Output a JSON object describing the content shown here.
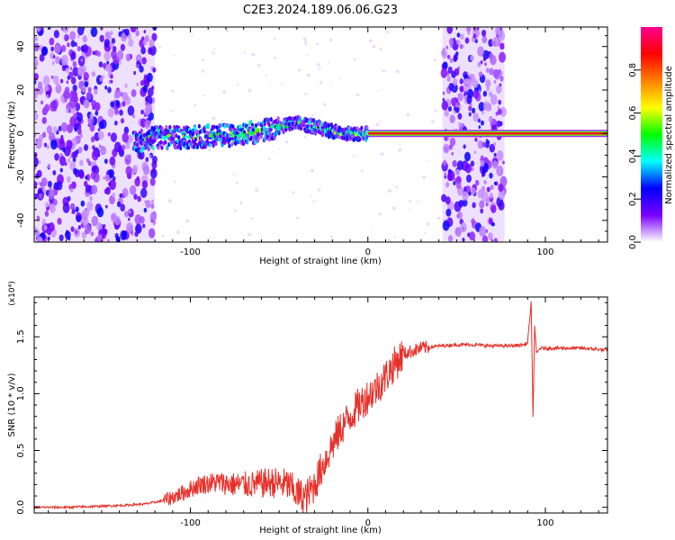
{
  "figure": {
    "title": "C2E3.2024.189.06.06.G23"
  },
  "chart_data": [
    {
      "type": "heatmap",
      "xlabel": "Height of straight line (km)",
      "ylabel": "Frequency (Hz)",
      "xlim": [
        -188,
        135
      ],
      "ylim": [
        -50,
        49
      ],
      "x_ticks": [
        -100,
        0,
        100
      ],
      "x_tick_labels": [
        "-100",
        "0",
        "100"
      ],
      "y_ticks": [
        -40,
        -20,
        0,
        20,
        40
      ],
      "y_tick_labels": [
        "-40",
        "-20",
        "0",
        "20",
        "40"
      ],
      "grid": false,
      "colorbar": {
        "label": "Normalized spectral amplitude",
        "range": [
          0,
          1
        ],
        "ticks": [
          0.0,
          0.2,
          0.4,
          0.6,
          0.8
        ],
        "tick_labels": [
          "0.0",
          "0.2",
          "0.4",
          "0.6",
          "0.8"
        ],
        "colors": [
          "#ffffff",
          "#7a00ff",
          "#0000ff",
          "#00ffff",
          "#00ff00",
          "#ffff00",
          "#ff8000",
          "#ff0000",
          "#ff0090"
        ]
      },
      "noise_regions": [
        {
          "x_from": -188,
          "x_to": -120,
          "density": "high"
        },
        {
          "x_from": 42,
          "x_to": 77,
          "density": "high"
        }
      ],
      "signal_trace": {
        "x": [
          -132,
          -120,
          -110,
          -100,
          -90,
          -80,
          -70,
          -60,
          -50,
          -44,
          -40,
          -35,
          -30,
          -25,
          -20,
          -15,
          -10,
          -5,
          0,
          5,
          10,
          15,
          20,
          25,
          30,
          35,
          40,
          45,
          50,
          60,
          70,
          75,
          80,
          85,
          90,
          100,
          110,
          120,
          130,
          135
        ],
        "y": [
          -4,
          -2,
          -2,
          -2,
          -1,
          -1,
          0,
          1,
          3,
          4,
          5,
          4,
          3,
          2,
          1,
          0,
          0,
          0,
          0,
          0,
          0,
          0,
          0,
          0,
          0,
          0,
          0,
          0,
          0,
          0,
          0,
          0,
          0,
          0,
          0,
          0,
          0,
          0,
          0,
          0
        ],
        "peak_amplitude_from_x": 0
      }
    },
    {
      "type": "line",
      "xlabel": "Height of straight line (km)",
      "ylabel": "SNR (10 * v/v)",
      "y_multiplier": "(x10⁴)",
      "xlim": [
        -188,
        135
      ],
      "ylim": [
        -0.05,
        1.85
      ],
      "x_ticks": [
        -100,
        0,
        100
      ],
      "x_tick_labels": [
        "-100",
        "0",
        "100"
      ],
      "y_ticks": [
        0.0,
        0.5,
        1.0,
        1.5
      ],
      "y_tick_labels": [
        "0.0",
        "0.5",
        "1.0",
        "1.5"
      ],
      "grid": false,
      "series": [
        {
          "color": "#e8302a",
          "x": [
            -188,
            -170,
            -150,
            -135,
            -125,
            -115,
            -105,
            -95,
            -85,
            -75,
            -65,
            -55,
            -45,
            -40,
            -35,
            -30,
            -25,
            -20,
            -15,
            -10,
            -5,
            0,
            5,
            10,
            15,
            20,
            30,
            40,
            50,
            60,
            70,
            80,
            88,
            90,
            92,
            93,
            94,
            95,
            97,
            100,
            110,
            120,
            130,
            135
          ],
          "y": [
            0.0,
            0.0,
            0.01,
            0.02,
            0.03,
            0.06,
            0.12,
            0.2,
            0.22,
            0.2,
            0.2,
            0.22,
            0.2,
            0.12,
            0.08,
            0.2,
            0.38,
            0.55,
            0.7,
            0.8,
            0.9,
            0.98,
            1.05,
            1.15,
            1.26,
            1.35,
            1.4,
            1.42,
            1.43,
            1.43,
            1.42,
            1.42,
            1.43,
            1.45,
            1.8,
            0.8,
            1.6,
            1.35,
            1.4,
            1.4,
            1.4,
            1.4,
            1.39,
            1.38
          ]
        }
      ]
    }
  ]
}
